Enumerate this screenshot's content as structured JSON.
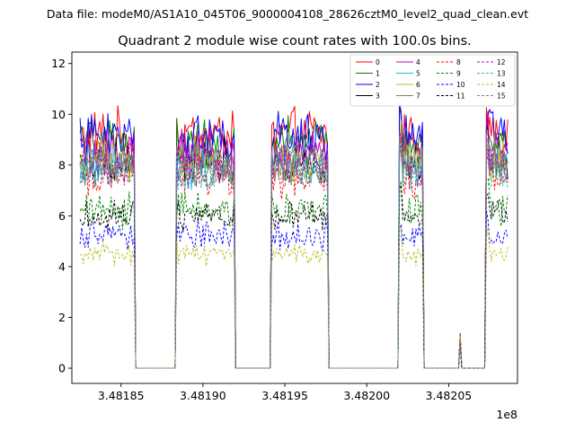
{
  "figure": {
    "suptitle": "Data file: modeM0/AS1A10_045T06_9000004108_28626cztM0_level2_quad_clean.evt"
  },
  "chart_data": {
    "type": "line",
    "title": "Quadrant 2 module wise count rates with 100.0s bins.",
    "xlabel": "",
    "ylabel": "",
    "x_offset_label": "1e8",
    "xlim": [
      348182000,
      348209200
    ],
    "ylim": [
      -0.6,
      12.45
    ],
    "x_ticks": [
      348185000,
      348190000,
      348195000,
      348200000,
      348205000
    ],
    "x_tick_labels": [
      "3.48185",
      "3.48190",
      "3.48195",
      "3.48200",
      "3.48205"
    ],
    "y_ticks": [
      0,
      2,
      4,
      6,
      8,
      10,
      12
    ],
    "y_tick_labels": [
      "0",
      "2",
      "4",
      "6",
      "8",
      "10",
      "12"
    ],
    "bin_seconds": 100,
    "gti_segments": [
      [
        348182500,
        348185850
      ],
      [
        348188350,
        348191950
      ],
      [
        348194150,
        348197650
      ],
      [
        348201950,
        348203450
      ],
      [
        348207250,
        348208650
      ]
    ],
    "gap_blips": [
      {
        "x": 348205700,
        "peak": 1.4
      }
    ],
    "legend_position": "top-right",
    "series": [
      {
        "name": "0",
        "color": "#ff0000",
        "dash": "solid",
        "level": 9.2
      },
      {
        "name": "1",
        "color": "#008000",
        "dash": "solid",
        "level": 8.9
      },
      {
        "name": "2",
        "color": "#0000ff",
        "dash": "solid",
        "level": 9.1
      },
      {
        "name": "3",
        "color": "#000000",
        "dash": "solid",
        "level": 8.2
      },
      {
        "name": "4",
        "color": "#bf00bf",
        "dash": "solid",
        "level": 8.5
      },
      {
        "name": "5",
        "color": "#17becf",
        "dash": "solid",
        "level": 7.9
      },
      {
        "name": "6",
        "color": "#bcbd22",
        "dash": "solid",
        "level": 8.1
      },
      {
        "name": "7",
        "color": "#7f7f7f",
        "dash": "solid",
        "level": 8.3
      },
      {
        "name": "8",
        "color": "#ff0000",
        "dash": "dashed",
        "level": 7.6
      },
      {
        "name": "9",
        "color": "#008000",
        "dash": "dashed",
        "level": 6.2
      },
      {
        "name": "10",
        "color": "#0000ff",
        "dash": "dashed",
        "level": 5.2
      },
      {
        "name": "11",
        "color": "#000000",
        "dash": "dashed",
        "level": 6.0
      },
      {
        "name": "12",
        "color": "#bf00bf",
        "dash": "dashed",
        "level": 8.0
      },
      {
        "name": "13",
        "color": "#17becf",
        "dash": "dashed",
        "level": 7.7
      },
      {
        "name": "14",
        "color": "#bcbd22",
        "dash": "dashed",
        "level": 4.5
      },
      {
        "name": "15",
        "color": "#7f7f7f",
        "dash": "dashed",
        "level": 7.8
      }
    ]
  }
}
